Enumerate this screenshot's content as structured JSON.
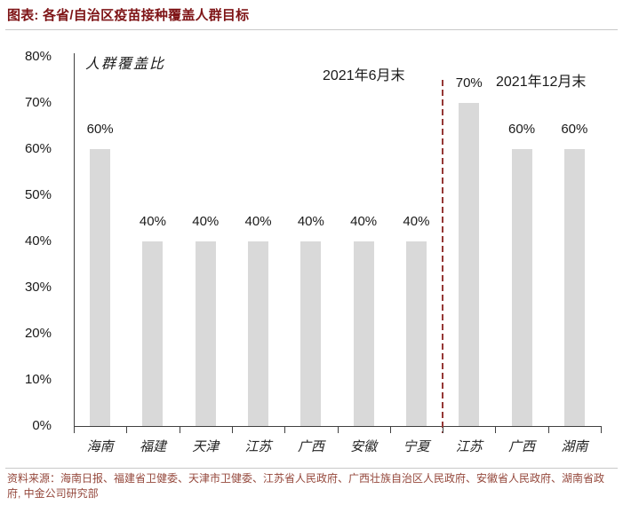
{
  "header": {
    "title": "图表: 各省/自治区疫苗接种覆盖人群目标"
  },
  "chart_data": {
    "type": "bar",
    "title": "图表: 各省/自治区疫苗接种覆盖人群目标",
    "ylabel_annotation": "人群覆盖比",
    "categories": [
      "海南",
      "福建",
      "天津",
      "江苏",
      "广西",
      "安徽",
      "宁夏",
      "江苏",
      "广西",
      "湖南"
    ],
    "values": [
      60,
      40,
      40,
      40,
      40,
      40,
      40,
      70,
      60,
      60
    ],
    "data_labels": [
      "60%",
      "40%",
      "40%",
      "40%",
      "40%",
      "40%",
      "40%",
      "70%",
      "60%",
      "60%"
    ],
    "groups": {
      "june_label": "2021年6月末",
      "december_label": "2021年12月末",
      "divider_after_index": 6
    },
    "y_ticks": [
      {
        "label": "80%",
        "value": 80
      },
      {
        "label": "70%",
        "value": 70
      },
      {
        "label": "60%",
        "value": 60
      },
      {
        "label": "50%",
        "value": 50
      },
      {
        "label": "40%",
        "value": 40
      },
      {
        "label": "30%",
        "value": 30
      },
      {
        "label": "20%",
        "value": 20
      },
      {
        "label": "10%",
        "value": 10
      },
      {
        "label": "0%",
        "value": 0
      }
    ],
    "ylim": [
      0,
      80
    ],
    "grid": false,
    "legend": "none",
    "bar_color": "#d9d9d9",
    "divider_color": "#953735",
    "accent_color": "#7e1416"
  },
  "footer": {
    "source": "资料来源：海南日报、福建省卫健委、天津市卫健委、江苏省人民政府、广西壮族自治区人民政府、安徽省人民政府、湖南省政府, 中金公司研究部"
  }
}
